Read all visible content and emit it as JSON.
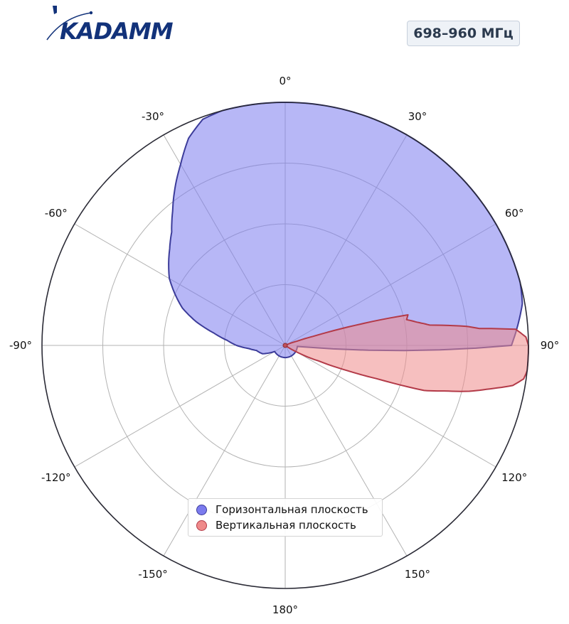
{
  "brand": {
    "logo_text": "KADAMM",
    "color": "#12327a"
  },
  "badge": {
    "frequency": "698–960 МГц"
  },
  "chart_data": {
    "type": "polar",
    "theta_direction": "clockwise",
    "theta_zero": "top",
    "theta_ticks": [
      "0°",
      "30°",
      "60°",
      "90°",
      "120°",
      "150°",
      "180°",
      "-150°",
      "-120°",
      "-90°",
      "-60°",
      "-30°"
    ],
    "theta_tick_angles": [
      0,
      30,
      60,
      90,
      120,
      150,
      180,
      -150,
      -120,
      -90,
      -60,
      -30
    ],
    "radial_grid": [
      0.25,
      0.5,
      0.75,
      1.0
    ],
    "rlim": [
      0,
      1.0
    ],
    "grid": true,
    "legend_position": "bottom-center",
    "series": [
      {
        "name": "Горизонтальная плоскость",
        "color": "#5b5bd6",
        "fill": "#7b7bee",
        "edge": "#3c3c9a",
        "theta": [
          -180,
          -170,
          -160,
          -150,
          -140,
          -130,
          -120,
          -110,
          -100,
          -95,
          -90,
          -85,
          -80,
          -75,
          -70,
          -60,
          -50,
          -45,
          -40,
          -35,
          -30,
          -25,
          -20,
          -15,
          -10,
          -5,
          0,
          10,
          20,
          30,
          40,
          50,
          60,
          65,
          70,
          75,
          80,
          85,
          90,
          95,
          100,
          110,
          120,
          130,
          140,
          150,
          160,
          170,
          180
        ],
        "r": [
          0.05,
          0.05,
          0.05,
          0.05,
          0.05,
          0.05,
          0.05,
          0.1,
          0.12,
          0.15,
          0.2,
          0.24,
          0.3,
          0.38,
          0.45,
          0.55,
          0.62,
          0.66,
          0.72,
          0.79,
          0.86,
          0.94,
          0.99,
          1.0,
          1.0,
          1.0,
          1.0,
          1.0,
          1.0,
          1.0,
          1.0,
          1.0,
          1.0,
          1.0,
          1.0,
          1.0,
          0.99,
          0.96,
          0.93,
          0.05,
          0.05,
          0.05,
          0.05,
          0.05,
          0.05,
          0.05,
          0.05,
          0.05,
          0.05
        ]
      },
      {
        "name": "Вертикальная плоскость",
        "color": "#e06666",
        "fill": "#ef8a8a",
        "edge": "#b33a48",
        "theta": [
          0,
          20,
          40,
          50,
          55,
          60,
          65,
          70,
          72,
          74,
          76,
          78,
          80,
          82,
          84,
          85,
          86,
          88,
          90,
          92,
          94,
          96,
          98,
          100,
          102,
          104,
          106,
          108,
          110,
          112,
          115,
          120,
          125,
          130,
          135,
          140,
          150,
          160,
          170,
          180,
          190,
          200,
          220,
          240,
          260,
          280,
          300,
          320,
          340,
          360
        ],
        "r": [
          0.0,
          0.0,
          0.0,
          0.0,
          0.0,
          0.0,
          0.0,
          0.05,
          0.12,
          0.3,
          0.52,
          0.51,
          0.55,
          0.6,
          0.75,
          0.8,
          0.95,
          0.99,
          1.0,
          1.0,
          1.0,
          1.0,
          0.99,
          0.95,
          0.86,
          0.78,
          0.68,
          0.6,
          0.4,
          0.28,
          0.15,
          0.05,
          0.0,
          0.0,
          0.0,
          0.0,
          0.0,
          0.0,
          0.0,
          0.0,
          0.0,
          0.0,
          0.0,
          0.0,
          0.0,
          0.0,
          0.0,
          0.0,
          0.0,
          0.0
        ]
      }
    ]
  }
}
